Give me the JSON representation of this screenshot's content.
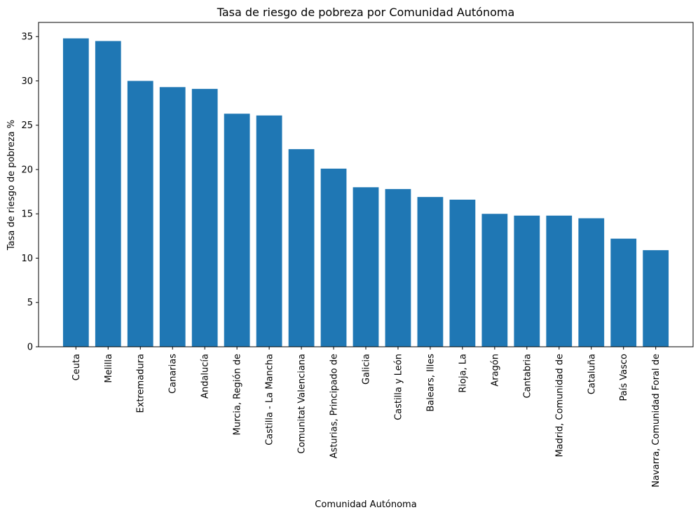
{
  "chart_data": {
    "type": "bar",
    "title": "Tasa de riesgo de pobreza por Comunidad Autónoma",
    "xlabel": "Comunidad Autónoma",
    "ylabel": "Tasa de riesgo de pobreza %",
    "ylim": [
      0,
      36.6
    ],
    "yticks": [
      0,
      5,
      10,
      15,
      20,
      25,
      30,
      35
    ],
    "bar_color": "#1f77b4",
    "grid": false,
    "legend": "none",
    "categories": [
      "Ceuta",
      "Melilla",
      "Extremadura",
      "Canarias",
      "Andalucía",
      "Murcia, Región de",
      "Castilla - La Mancha",
      "Comunitat Valenciana",
      "Asturias, Principado de",
      "Galicia",
      "Castilla y León",
      "Balears, Illes",
      "Rioja, La",
      "Aragón",
      "Cantabria",
      "Madrid, Comunidad de",
      "Cataluña",
      "País Vasco",
      "Navarra, Comunidad Foral de"
    ],
    "values": [
      34.8,
      34.5,
      30.0,
      29.3,
      29.1,
      26.3,
      26.1,
      22.3,
      20.1,
      18.0,
      17.8,
      16.9,
      16.6,
      15.0,
      14.8,
      14.8,
      14.5,
      12.2,
      10.9
    ]
  }
}
